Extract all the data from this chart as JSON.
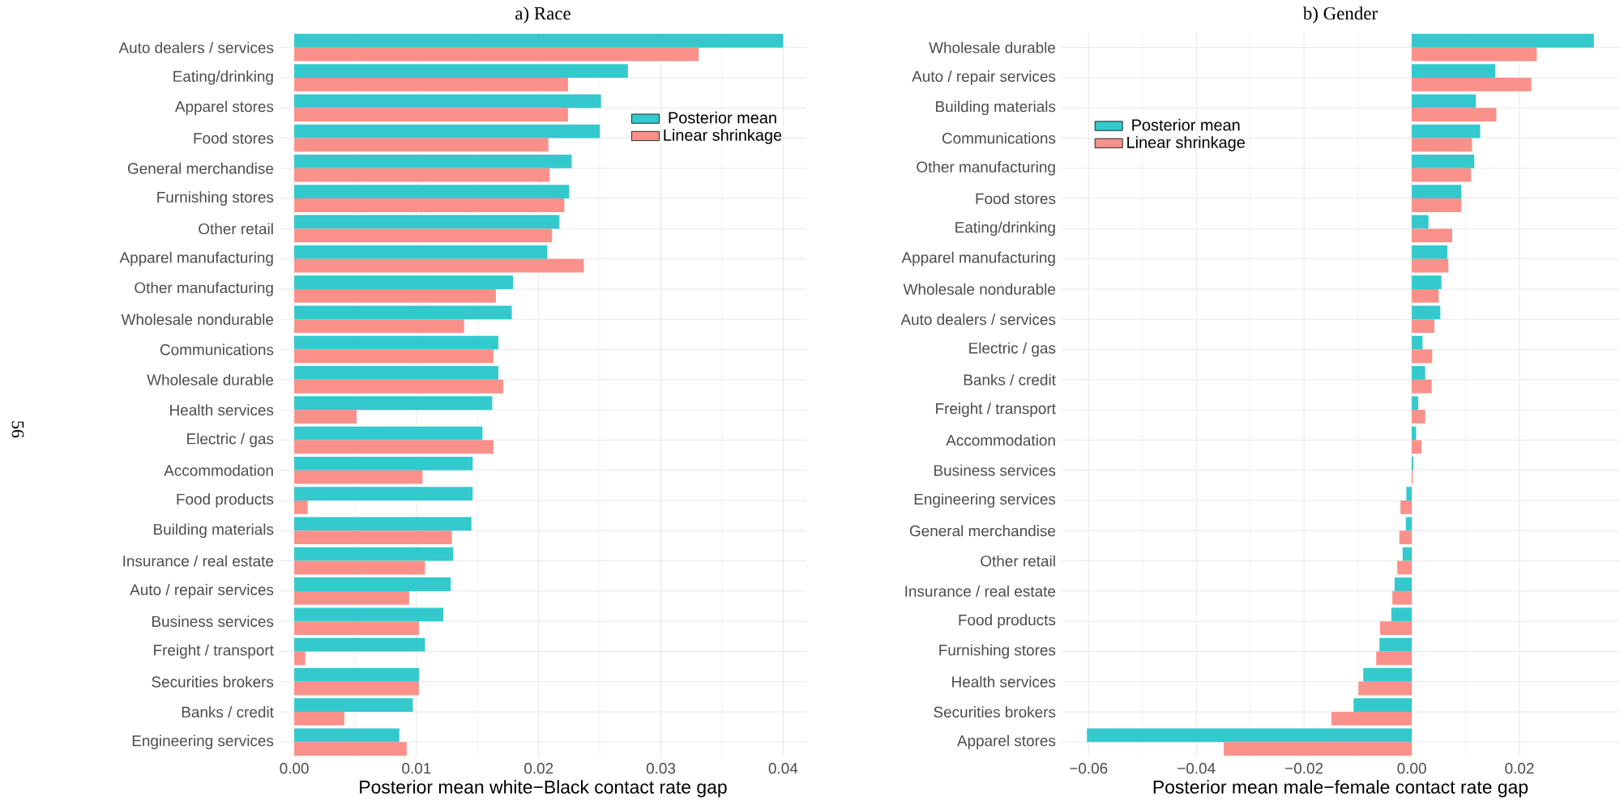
{
  "chart_data": [
    {
      "type": "bar",
      "orientation": "horizontal",
      "title": "a) Race",
      "xlabel": "Posterior mean white−Black contact rate gap",
      "annotations": [
        "56"
      ],
      "categories": [
        "Auto dealers / services",
        "Eating/drinking",
        "Apparel stores",
        "Food stores",
        "General merchandise",
        "Furnishing stores",
        "Other retail",
        "Apparel manufacturing",
        "Other manufacturing",
        "Wholesale nondurable",
        "Communications",
        "Wholesale durable",
        "Health services",
        "Electric / gas",
        "Accommodation",
        "Food products",
        "Building materials",
        "Insurance / real estate",
        "Auto / repair services",
        "Business services",
        "Freight / transport",
        "Securities brokers",
        "Banks / credit",
        "Engineering services"
      ],
      "series": [
        {
          "name": "Posterior mean",
          "color": "#33c9cd",
          "values": [
            0.04,
            0.0273,
            0.0251,
            0.025,
            0.0227,
            0.0225,
            0.0217,
            0.0207,
            0.0179,
            0.0178,
            0.0167,
            0.0167,
            0.0162,
            0.0154,
            0.0146,
            0.0146,
            0.0145,
            0.013,
            0.0128,
            0.0122,
            0.0107,
            0.0102,
            0.0097,
            0.0086
          ]
        },
        {
          "name": "Linear shrinkage",
          "color": "#f9918a",
          "values": [
            0.0331,
            0.0224,
            0.0224,
            0.0208,
            0.0209,
            0.0221,
            0.0211,
            0.0237,
            0.0165,
            0.0139,
            0.0163,
            0.0171,
            0.0051,
            0.0163,
            0.0105,
            0.0011,
            0.0129,
            0.0107,
            0.0094,
            0.0102,
            0.0009,
            0.0102,
            0.0041,
            0.0092
          ]
        }
      ],
      "xlim": [
        -0.0012,
        0.0419
      ],
      "xticks": [
        {
          "value": 0,
          "label": "0.00"
        },
        0.01,
        0.02,
        0.03,
        0.04
      ],
      "grid": true,
      "legend": "top right"
    },
    {
      "type": "bar",
      "orientation": "horizontal",
      "title": "b) Gender",
      "xlabel": "Posterior mean male−female contact rate gap",
      "categories": [
        "Wholesale durable",
        "Auto / repair services",
        "Building materials",
        "Communications",
        "Other manufacturing",
        "Food stores",
        "Eating/drinking",
        "Apparel manufacturing",
        "Wholesale nondurable",
        "Auto dealers / services",
        "Electric / gas",
        "Banks / credit",
        "Freight / transport",
        "Accommodation",
        "Business services",
        "Engineering services",
        "General merchandise",
        "Other retail",
        "Insurance / real estate",
        "Food products",
        "Furnishing stores",
        "Health services",
        "Securities brokers",
        "Apparel stores"
      ],
      "series": [
        {
          "name": "Posterior mean",
          "color": "#33c9cd",
          "values": [
            0.0338,
            0.0155,
            0.0119,
            0.0127,
            0.0116,
            0.0092,
            0.0031,
            0.0066,
            0.0055,
            0.0053,
            0.002,
            0.0025,
            0.0012,
            0.0008,
            0.0003,
            -0.001,
            -0.0011,
            -0.0017,
            -0.0032,
            -0.0038,
            -0.006,
            -0.009,
            -0.0108,
            -0.0603
          ]
        },
        {
          "name": "Linear shrinkage",
          "color": "#f9918a",
          "values": [
            0.0232,
            0.0222,
            0.0157,
            0.0112,
            0.011,
            0.0092,
            0.0075,
            0.0068,
            0.005,
            0.0042,
            0.0038,
            0.0037,
            0.0025,
            0.0018,
            0.0002,
            -0.0021,
            -0.0023,
            -0.0027,
            -0.0036,
            -0.0059,
            -0.0066,
            -0.0099,
            -0.0149,
            -0.0349
          ]
        }
      ],
      "xlim": [
        -0.065,
        0.0385
      ],
      "xticks": [
        {
          "value": -0.06,
          "label": "−0.06"
        },
        {
          "value": -0.04,
          "label": "−0.04"
        },
        {
          "value": -0.02,
          "label": "−0.02"
        },
        {
          "value": 0,
          "label": "0.00"
        },
        0.02
      ],
      "grid": true,
      "legend": "top left"
    }
  ]
}
